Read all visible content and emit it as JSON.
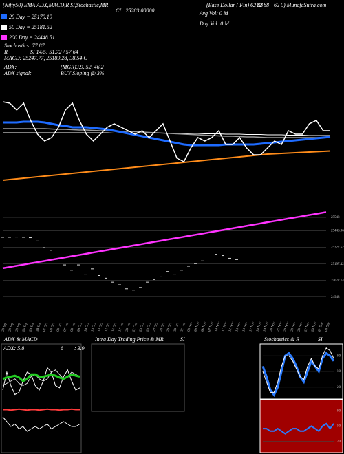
{
  "header": {
    "top": [
      "(Nifty50) EMA ADX,MACD,R SI,Stochastic,MR",
      "(Ease Dollar ( Fin) 62 88",
      "62 88",
      "62 0) MunafaSutra.com"
    ],
    "cl": "CL: 25283.00000",
    "avg_vol": "Avg Vol: 0  M",
    "day_vol": "Day Vol: 0  M",
    "ma": [
      "20 Day = 25170.19",
      "50 Day = 25181.52",
      "200 Day = 24448.51"
    ],
    "stoch": "Stochastics: 77.87",
    "r": "R",
    "rsi": "SI 14/5: 51.72 / 57.64",
    "macd": "MACD: 25247.77, 25189.28, 38.54 C",
    "adx": "ADX:",
    "adx_v": "(MGR)3.9, 52, 46.2",
    "adx_signal": "ADX  signal:",
    "adx_signal_v": "BUY Sloping @ 3%"
  },
  "panels": {
    "adx_title": "ADX & MACD",
    "adx_v": "ADX: 5.8",
    "adx_a": "6",
    "adx_b": ": 3.9",
    "intraday": "Intra Day Trading Price & MR",
    "intraday_si": "SI",
    "stoch": "Stochastics & R",
    "stoch_si": "SI"
  },
  "chart_data": [
    {
      "type": "line",
      "ylim": [
        24100,
        25800
      ],
      "series": [
        {
          "color": "#ff8c1a",
          "width": 2,
          "values": [
            24480,
            24490,
            24500,
            24510,
            24520,
            24530,
            24540,
            24550,
            24560,
            24570,
            24580,
            24590,
            24600,
            24610,
            24620,
            24630,
            24640,
            24650,
            24660,
            24670,
            24680,
            24690,
            24700,
            24710,
            24720,
            24730,
            24740,
            24750,
            24760,
            24770,
            24780,
            24790,
            24800,
            24810,
            24820,
            24830,
            24840,
            24850,
            24860,
            24865,
            24870,
            24875,
            24880,
            24885,
            24890,
            24895,
            24900,
            24905
          ]
        },
        {
          "color": "#ffffff",
          "width": 1,
          "values": [
            25170,
            25170,
            25170,
            25170,
            25170,
            25170,
            25170,
            25170,
            25170,
            25170,
            25170,
            25170,
            25170,
            25170,
            25170,
            25170,
            25165,
            25165,
            25165,
            25165,
            25165,
            25165,
            25165,
            25165,
            25160,
            25160,
            25160,
            25160,
            25160,
            25155,
            25155,
            25155,
            25150,
            25150,
            25150,
            25145,
            25145,
            25145,
            25140,
            25140,
            25140,
            25135,
            25135,
            25135,
            25130,
            25130,
            25130,
            25130
          ]
        },
        {
          "color": "#9a9a9a",
          "width": 1.5,
          "values": [
            25230,
            25230,
            25230,
            25230,
            25230,
            25230,
            25230,
            25225,
            25220,
            25220,
            25215,
            25210,
            25210,
            25205,
            25200,
            25200,
            25195,
            25190,
            25190,
            25185,
            25180,
            25175,
            25170,
            25165,
            25160,
            25155,
            25150,
            25145,
            25140,
            25135,
            25130,
            25125,
            25120,
            25120,
            25115,
            25110,
            25110,
            25105,
            25100,
            25100,
            25100,
            25100,
            25100,
            25100,
            25100,
            25100,
            25100,
            25100
          ]
        },
        {
          "color": "#1e6bff",
          "width": 3,
          "values": [
            25320,
            25320,
            25320,
            25330,
            25330,
            25330,
            25320,
            25300,
            25280,
            25270,
            25250,
            25250,
            25250,
            25240,
            25230,
            25220,
            25200,
            25180,
            25160,
            25140,
            25120,
            25100,
            25080,
            25060,
            25040,
            25020,
            25000,
            24990,
            24990,
            24990,
            24990,
            24990,
            25000,
            25000,
            25000,
            25000,
            25000,
            25010,
            25020,
            25030,
            25040,
            25050,
            25060,
            25070,
            25080,
            25090,
            25100,
            25110
          ]
        },
        {
          "color": "#ffffff",
          "width": 1.5,
          "values": [
            25620,
            25600,
            25500,
            25600,
            25350,
            25150,
            25050,
            25100,
            25250,
            25500,
            25600,
            25350,
            25150,
            25050,
            25150,
            25250,
            25300,
            25250,
            25200,
            25150,
            25200,
            25100,
            25200,
            25300,
            25050,
            24800,
            24750,
            24950,
            25100,
            25050,
            25100,
            25200,
            25000,
            25000,
            25100,
            24950,
            24850,
            24850,
            24950,
            25050,
            25000,
            25200,
            25150,
            25150,
            25300,
            25350,
            25200,
            25200
          ]
        }
      ]
    },
    {
      "type": "line",
      "ylim": [
        24900,
        25600
      ],
      "yticks": [
        25548,
        25446.96,
        25322.52,
        25197.42,
        25072.74,
        24948
      ],
      "grid": true,
      "categories": [
        "23 Sep",
        "24 Sep",
        "25 Sep",
        "26 Sep",
        "29 Sep",
        "30 Sep",
        "01 Oct",
        "03 Oct",
        "06 Oct",
        "07 Oct",
        "08 Oct",
        "09 Oct",
        "10 Oct",
        "13 Oct",
        "14 Oct",
        "15 Oct",
        "16 Oct",
        "17 Oct",
        "20 Oct",
        "21 Oct",
        "23 Oct",
        "24 Oct",
        "27 Oct",
        "28 Oct",
        "29 Oct",
        "30 Oct",
        "31 Oct",
        "03 Nov",
        "04 Nov",
        "06 Nov",
        "07 Nov",
        "10 Nov",
        "11 Nov",
        "12 Nov",
        "13 Nov",
        "14 Nov",
        "17 Nov",
        "18 Nov",
        "19 Nov",
        "20 Nov",
        "21 Nov",
        "24 Nov",
        "25 Nov",
        "26 Nov",
        "27 Nov",
        "28 Nov",
        "01 Dec",
        "02 Dec"
      ],
      "series": [
        {
          "color": "#ff33ff",
          "width": 2.5,
          "values": [
            25165,
            25174,
            25183,
            25192,
            25201,
            25210,
            25219,
            25228,
            25237,
            25246,
            25255,
            25264,
            25273,
            25282,
            25291,
            25300,
            25309,
            25318,
            25327,
            25336,
            25345,
            25354,
            25363,
            25372,
            25381,
            25390,
            25399,
            25408,
            25417,
            25426,
            25435,
            25444,
            25453,
            25462,
            25471,
            25480,
            25489,
            25498,
            25507,
            25516,
            25525,
            25534,
            25543,
            25552,
            25561,
            25570,
            25579,
            25588
          ]
        },
        {
          "color": "#dddddd",
          "marker": "dash",
          "values": [
            25398,
            25398,
            25400,
            25398,
            25395,
            25370,
            25320,
            25300,
            25250,
            25190,
            25150,
            25190,
            25120,
            25160,
            25110,
            25090,
            25060,
            25040,
            25010,
            25000,
            25020,
            25060,
            25080,
            25100,
            25140,
            25120,
            25150,
            25180,
            25200,
            25220,
            25250,
            25270,
            25260,
            25240,
            25230,
            null,
            null,
            null,
            null,
            null,
            null,
            null,
            null,
            null,
            null,
            null,
            null,
            null
          ]
        }
      ]
    },
    {
      "type": "line",
      "ylim": [
        0,
        100
      ],
      "series": [
        {
          "color": "#ffffff",
          "width": 1,
          "values": [
            20,
            60,
            30,
            10,
            15,
            40,
            60,
            55,
            30,
            20,
            40,
            70,
            60,
            30,
            25,
            50,
            65,
            40,
            20,
            25
          ]
        },
        {
          "color": "#dddddd",
          "width": 1,
          "values": [
            30,
            35,
            40,
            45,
            35,
            30,
            35,
            50,
            55,
            45,
            40,
            45,
            60,
            65,
            55,
            45,
            50,
            60,
            55,
            50
          ]
        },
        {
          "color": "#22cc22",
          "width": 3,
          "values": [
            45,
            48,
            50,
            52,
            48,
            40,
            45,
            55,
            55,
            50,
            50,
            52,
            55,
            52,
            48,
            45,
            50,
            55,
            52,
            50
          ]
        }
      ]
    },
    {
      "type": "line",
      "ylim": [
        0,
        100
      ],
      "series": [
        {
          "color": "#ff3b3b",
          "width": 2,
          "values": [
            85,
            85,
            84,
            85,
            86,
            85,
            84,
            85,
            85,
            84,
            85,
            86,
            85,
            85,
            84,
            85,
            85,
            86,
            85,
            85
          ]
        },
        {
          "color": "#ffffff",
          "width": 1,
          "values": [
            70,
            60,
            50,
            55,
            45,
            50,
            40,
            45,
            50,
            45,
            50,
            55,
            45,
            50,
            55,
            60,
            55,
            50,
            50,
            55
          ]
        }
      ]
    },
    {
      "type": "line",
      "ylim": [
        0,
        100
      ],
      "yticks": [
        20,
        50,
        80
      ],
      "grid": true,
      "series": [
        {
          "color": "#2a7bff",
          "width": 3,
          "values": [
            60,
            40,
            15,
            5,
            20,
            50,
            80,
            85,
            75,
            60,
            40,
            30,
            50,
            70,
            60,
            50,
            75,
            85,
            80,
            70
          ]
        },
        {
          "color": "#ffffff",
          "width": 1,
          "values": [
            50,
            30,
            10,
            10,
            30,
            60,
            80,
            80,
            70,
            55,
            40,
            35,
            60,
            75,
            60,
            55,
            80,
            95,
            90,
            75
          ]
        }
      ]
    },
    {
      "type": "line",
      "ylim": [
        0,
        100
      ],
      "yticks": [
        20,
        50,
        80
      ],
      "grid": true,
      "series": [
        {
          "color": "#2a7bff",
          "width": 2,
          "values": [
            45,
            45,
            40,
            40,
            45,
            40,
            35,
            40,
            45,
            45,
            40,
            40,
            45,
            50,
            45,
            40,
            50,
            55,
            45,
            55
          ]
        }
      ]
    }
  ]
}
